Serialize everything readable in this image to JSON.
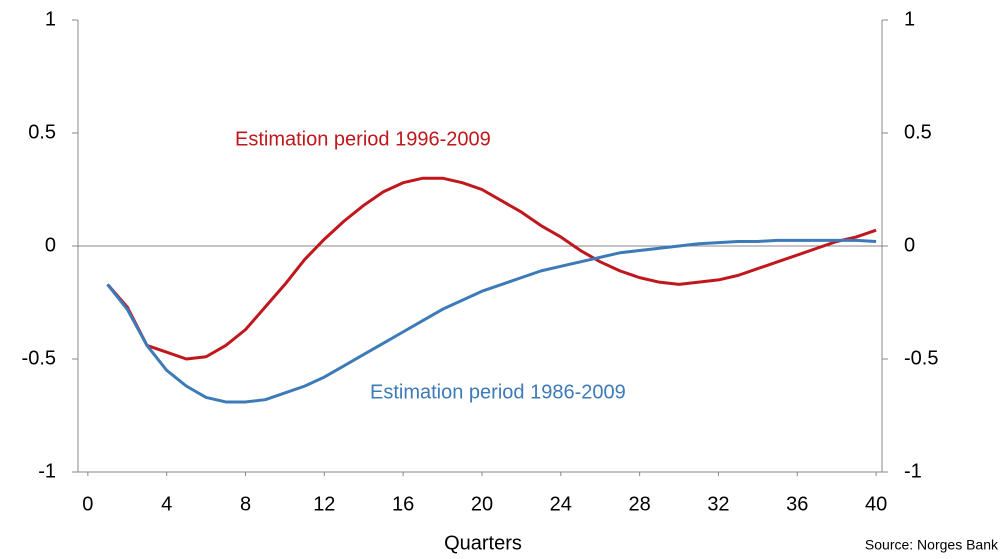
{
  "chart_data": {
    "type": "line",
    "x_label": "Quarters",
    "source": "Source: Norges Bank",
    "x": [
      1,
      2,
      3,
      4,
      5,
      6,
      7,
      8,
      9,
      10,
      11,
      12,
      13,
      14,
      15,
      16,
      17,
      18,
      19,
      20,
      21,
      22,
      23,
      24,
      25,
      26,
      27,
      28,
      29,
      30,
      31,
      32,
      33,
      34,
      35,
      36,
      37,
      38,
      39,
      40
    ],
    "series": [
      {
        "name": "Estimation period 1996-2009",
        "color": "#c0171c",
        "values": [
          -0.17,
          -0.27,
          -0.44,
          -0.47,
          -0.5,
          -0.49,
          -0.44,
          -0.37,
          -0.27,
          -0.17,
          -0.06,
          0.03,
          0.11,
          0.18,
          0.24,
          0.28,
          0.3,
          0.3,
          0.28,
          0.25,
          0.2,
          0.15,
          0.09,
          0.04,
          -0.02,
          -0.07,
          -0.11,
          -0.14,
          -0.16,
          -0.17,
          -0.16,
          -0.15,
          -0.13,
          -0.1,
          -0.07,
          -0.04,
          -0.01,
          0.02,
          0.04,
          0.07
        ]
      },
      {
        "name": "Estimation period 1986-2009",
        "color": "#3d7ab8",
        "values": [
          -0.17,
          -0.28,
          -0.44,
          -0.55,
          -0.62,
          -0.67,
          -0.69,
          -0.69,
          -0.68,
          -0.65,
          -0.62,
          -0.58,
          -0.53,
          -0.48,
          -0.43,
          -0.38,
          -0.33,
          -0.28,
          -0.24,
          -0.2,
          -0.17,
          -0.14,
          -0.11,
          -0.09,
          -0.07,
          -0.05,
          -0.03,
          -0.02,
          -0.01,
          0,
          0.01,
          0.015,
          0.02,
          0.02,
          0.025,
          0.025,
          0.025,
          0.025,
          0.025,
          0.02
        ]
      }
    ],
    "xlim": [
      -0.5,
      40.3
    ],
    "xticks": [
      0,
      4,
      8,
      12,
      16,
      20,
      24,
      28,
      32,
      36,
      40
    ],
    "ylim": [
      -1,
      1
    ],
    "yticks": [
      -1,
      -0.5,
      0,
      0.5,
      1
    ],
    "y2lim": [
      -1,
      1
    ],
    "y2ticks": [
      -1,
      -0.5,
      0,
      0.5,
      1
    ]
  }
}
